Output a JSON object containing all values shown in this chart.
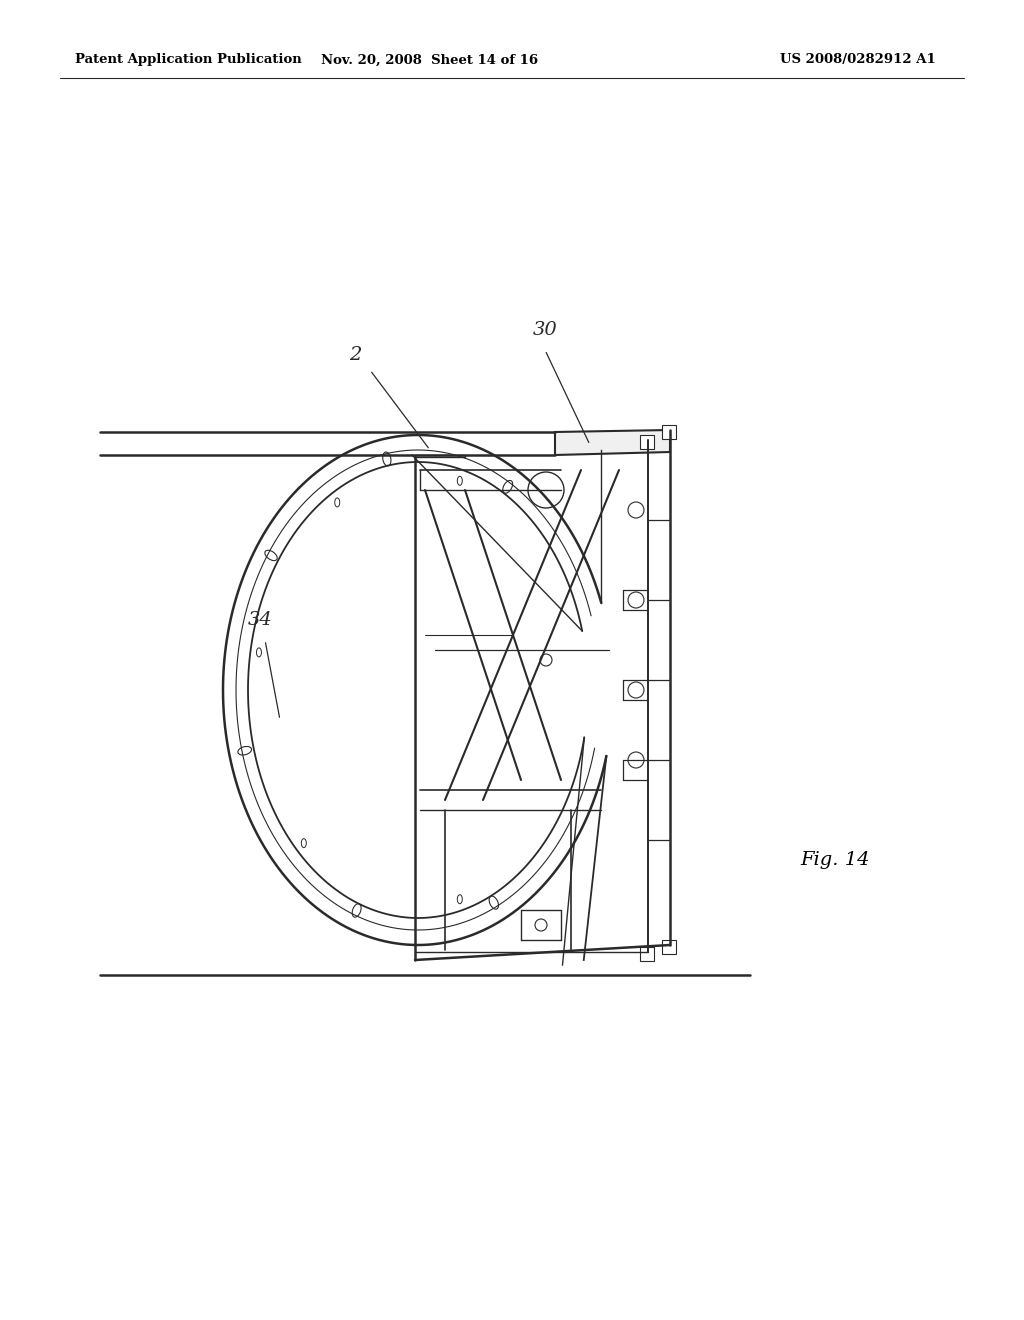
{
  "bg_color": "#ffffff",
  "header_left": "Patent Application Publication",
  "header_mid": "Nov. 20, 2008  Sheet 14 of 16",
  "header_right": "US 2008/0282912 A1",
  "fig_label": "Fig. 14",
  "line_color": "#2a2a2a",
  "line_width": 1.0
}
